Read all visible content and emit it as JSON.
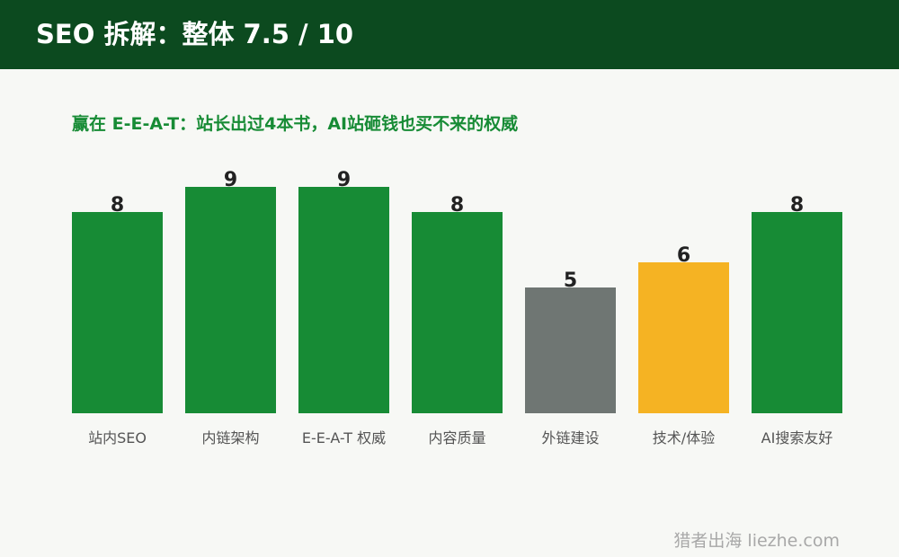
{
  "header": {
    "title": "SEO 拆解：整体 7.5 / 10"
  },
  "subtitle": "赢在 E-E-A-T：站长出过4本书，AI站砸钱也买不来的权威",
  "watermark": "猎者出海 liezhe.com",
  "chart_data": {
    "type": "bar",
    "categories": [
      "站内SEO",
      "内链架构",
      "E-E-A-T 权威",
      "内容质量",
      "外链建设",
      "技术/体验",
      "AI搜索友好"
    ],
    "values": [
      8,
      9,
      9,
      8,
      5,
      6,
      8
    ],
    "colors": [
      "#178b35",
      "#178b35",
      "#178b35",
      "#178b35",
      "#6f7673",
      "#f5b323",
      "#178b35"
    ],
    "ylim": [
      0,
      10
    ],
    "grid": false,
    "legend": "none",
    "title": "",
    "xlabel": "",
    "ylabel": ""
  }
}
